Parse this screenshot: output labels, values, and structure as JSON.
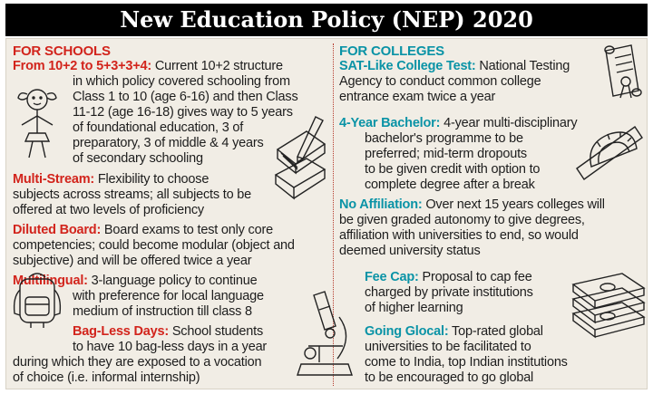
{
  "title": "New Education Policy (NEP) 2020",
  "schools": {
    "header": "FOR SCHOOLS",
    "items": [
      {
        "head": "From 10+2 to 5+3+3+4:",
        "lines": [
          " Current 10+2 structure",
          "in which policy covered schooling from",
          "Class 1 to 10 (age 6-16) and then Class",
          "11-12 (age 16-18) gives way to 5 years",
          "of foundational education, 3 of",
          "preparatory, 3 of middle & 4 years",
          "of secondary schooling"
        ]
      },
      {
        "head": "Multi-Stream:",
        "lines": [
          " Flexibility to choose",
          "subjects across streams; all subjects to be",
          "offered at two levels of proficiency"
        ]
      },
      {
        "head": "Diluted Board:",
        "lines": [
          " Board exams to test only core",
          "competencies; could become modular (object and",
          "subjective) and will be offered twice a year"
        ]
      },
      {
        "head": "Multilingual:",
        "lines": [
          " 3-language policy to continue",
          "with preference for local language",
          "medium of instruction till class 8"
        ]
      },
      {
        "head": "Bag-Less Days:",
        "lines": [
          " School students",
          "to have 10 bag-less days in a year",
          "during which they are exposed to a vocation",
          "of choice (i.e. informal internship)"
        ]
      }
    ]
  },
  "colleges": {
    "header": "FOR COLLEGES",
    "items": [
      {
        "head": "SAT-Like College Test:",
        "lines": [
          " National Testing",
          "Agency to conduct common college",
          "entrance exam twice a year"
        ]
      },
      {
        "head": "4-Year Bachelor:",
        "lines": [
          " 4-year multi-disciplinary",
          "bachelor's programme to be",
          "preferred; mid-term dropouts",
          "to be given credit with option to",
          "complete degree after a break"
        ]
      },
      {
        "head": "No Affiliation:",
        "lines": [
          " Over next 15 years colleges will",
          "be given graded autonomy to give degrees,",
          "affiliation with universities to end, so would",
          "deemed university status"
        ]
      },
      {
        "head": "Fee Cap:",
        "lines": [
          " Proposal to cap fee",
          "charged by private institutions",
          "of higher learning"
        ]
      },
      {
        "head": "Going Glocal:",
        "lines": [
          " Top-rated global",
          "universities to be facilitated to",
          "come to India, top Indian institutions",
          "to be encouraged to go global"
        ]
      }
    ]
  },
  "icons": [
    "girl-drawing-icon",
    "books-pencil-icon",
    "backpack-icon",
    "microscope-icon",
    "diploma-scroll-icon",
    "protractor-icon",
    "money-stack-icon"
  ],
  "colors": {
    "school_accent": "#d2241c",
    "college_accent": "#0a93a6",
    "title_bg": "#000000",
    "panel_bg": "#f1ede5"
  }
}
